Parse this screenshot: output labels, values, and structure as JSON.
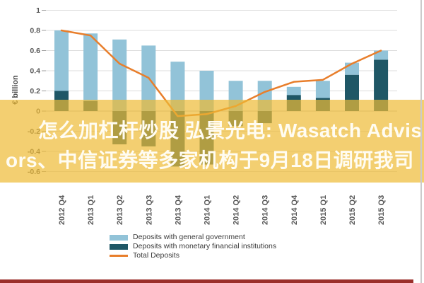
{
  "chart_data": {
    "type": "bar",
    "stacked": true,
    "grid": true,
    "legend_position": "bottom",
    "ylabel": "€ billion",
    "ylim": [
      -0.6,
      1.0
    ],
    "yticks": [
      1,
      0.8,
      0.6,
      0.4,
      0.2,
      0,
      -0.2,
      -0.4,
      -0.6
    ],
    "categories": [
      "2012 Q4",
      "2013 Q1",
      "2013 Q2",
      "2013 Q3",
      "2013 Q4",
      "2014 Q1",
      "2014 Q2",
      "2014 Q3",
      "2014 Q4",
      "2015 Q1",
      "2015 Q2",
      "2015 Q3"
    ],
    "series": [
      {
        "name": "Deposits with general government",
        "kind": "bar",
        "color": "#92C3D8",
        "values": [
          0.6,
          0.67,
          0.71,
          0.65,
          0.49,
          0.4,
          0.3,
          0.3,
          0.08,
          0.17,
          0.12,
          0.09
        ]
      },
      {
        "name": "Deposits with monetary financial institutions",
        "kind": "bar",
        "color": "#1F5766",
        "values": [
          0.2,
          0.1,
          -0.33,
          -0.35,
          -0.55,
          -0.53,
          -0.15,
          -0.12,
          0.16,
          0.13,
          0.36,
          0.51
        ]
      },
      {
        "name": "Total Deposits",
        "kind": "line",
        "color": "#E87E2B",
        "values": [
          0.8,
          0.75,
          0.47,
          0.33,
          -0.05,
          -0.03,
          0.05,
          0.19,
          0.29,
          0.31,
          0.47,
          0.6
        ]
      }
    ]
  },
  "overlay": {
    "line1": "怎么加杠杆炒股 弘景光电: Wasatch Advis",
    "line2": "ors、中信证券等多家机构于9月18日调研我司",
    "text_color": "#FFFCF2",
    "band_color": "#EEBA34"
  },
  "decorations": {
    "right_divider_color": "#CBCBCB",
    "bottom_strip_color": "#9B2F2B"
  }
}
